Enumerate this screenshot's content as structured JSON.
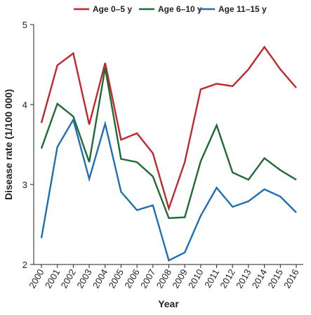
{
  "chart_data": {
    "type": "line",
    "title": "",
    "xlabel": "Year",
    "ylabel": "Disease rate (1/100 000)",
    "x": [
      "2000",
      "2001",
      "2002",
      "2003",
      "2004",
      "2005",
      "2006",
      "2007",
      "2008",
      "2009",
      "2010",
      "2011",
      "2012",
      "2013",
      "2014",
      "2015",
      "2016"
    ],
    "ylim": [
      2,
      5
    ],
    "yticks": [
      "2",
      "3",
      "4",
      "5"
    ],
    "grid": false,
    "legend_position": "top",
    "series": [
      {
        "name": "Age 0–5 y",
        "color": "#c1272d",
        "values": [
          3.77,
          4.49,
          4.64,
          3.75,
          4.52,
          3.56,
          3.64,
          3.39,
          2.7,
          3.28,
          4.19,
          4.26,
          4.23,
          4.44,
          4.72,
          4.44,
          4.21
        ]
      },
      {
        "name": "Age 6–10 y",
        "color": "#1e6b35",
        "values": [
          3.45,
          4.01,
          3.85,
          3.28,
          4.46,
          3.32,
          3.28,
          3.1,
          2.58,
          2.59,
          3.29,
          3.74,
          3.15,
          3.06,
          3.33,
          3.18,
          3.06
        ]
      },
      {
        "name": "Age 11–15 y",
        "color": "#1f6fb4",
        "values": [
          2.33,
          3.47,
          3.81,
          3.07,
          3.76,
          2.91,
          2.68,
          2.74,
          2.05,
          2.15,
          2.61,
          2.96,
          2.72,
          2.79,
          2.94,
          2.85,
          2.65
        ]
      }
    ]
  }
}
